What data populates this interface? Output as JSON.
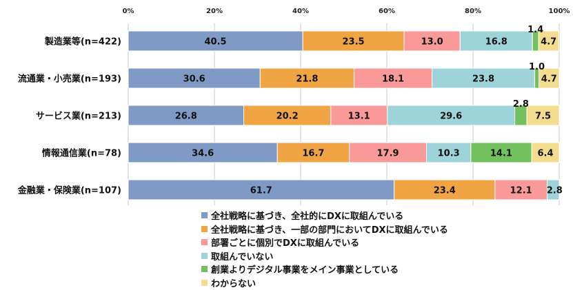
{
  "chart_data": {
    "type": "bar",
    "orientation": "horizontal",
    "stacked": true,
    "xlim": [
      0,
      100
    ],
    "x_ticks": [
      "0%",
      "20%",
      "40%",
      "60%",
      "80%",
      "100%"
    ],
    "x_tick_values": [
      0,
      20,
      40,
      60,
      80,
      100
    ],
    "grid": true,
    "legend_position": "bottom",
    "categories": [
      "製造業等(n=422)",
      "流通業・小売業(n=193)",
      "サービス業(n=213)",
      "情報通信業(n=78)",
      "金融業・保険業(n=107)"
    ],
    "series": [
      {
        "name": "全社戦略に基づき、全社的にDXに取組んでいる",
        "color": "#7f9ac4",
        "values": [
          40.5,
          30.6,
          26.8,
          34.6,
          61.7
        ],
        "labels": [
          "40.5",
          "30.6",
          "26.8",
          "34.6",
          "61.7"
        ]
      },
      {
        "name": "全社戦略に基づき、一部の部門においてDXに取組んでいる",
        "color": "#f0a444",
        "values": [
          23.5,
          21.8,
          20.2,
          16.7,
          23.4
        ],
        "labels": [
          "23.5",
          "21.8",
          "20.2",
          "16.7",
          "23.4"
        ]
      },
      {
        "name": "部署ごとに個別でDXに取組んでいる",
        "color": "#f99a99",
        "values": [
          13.0,
          18.1,
          13.1,
          17.9,
          12.1
        ],
        "labels": [
          "13.0",
          "18.1",
          "13.1",
          "17.9",
          "12.1"
        ]
      },
      {
        "name": "取組んでいない",
        "color": "#9fd3da",
        "values": [
          16.8,
          23.8,
          29.6,
          10.3,
          2.8
        ],
        "labels": [
          "16.8",
          "23.8",
          "29.6",
          "10.3",
          "2.8"
        ]
      },
      {
        "name": "創業よりデジタル事業をメイン事業としている",
        "color": "#72c05e",
        "values": [
          1.4,
          1.0,
          2.8,
          14.1,
          0
        ],
        "labels": [
          "1.4",
          "1.0",
          "2.8",
          "14.1",
          ""
        ]
      },
      {
        "name": "わからない",
        "color": "#f3dc8e",
        "values": [
          4.7,
          4.7,
          7.5,
          6.4,
          0
        ],
        "labels": [
          "4.7",
          "4.7",
          "7.5",
          "6.4",
          ""
        ]
      }
    ]
  }
}
